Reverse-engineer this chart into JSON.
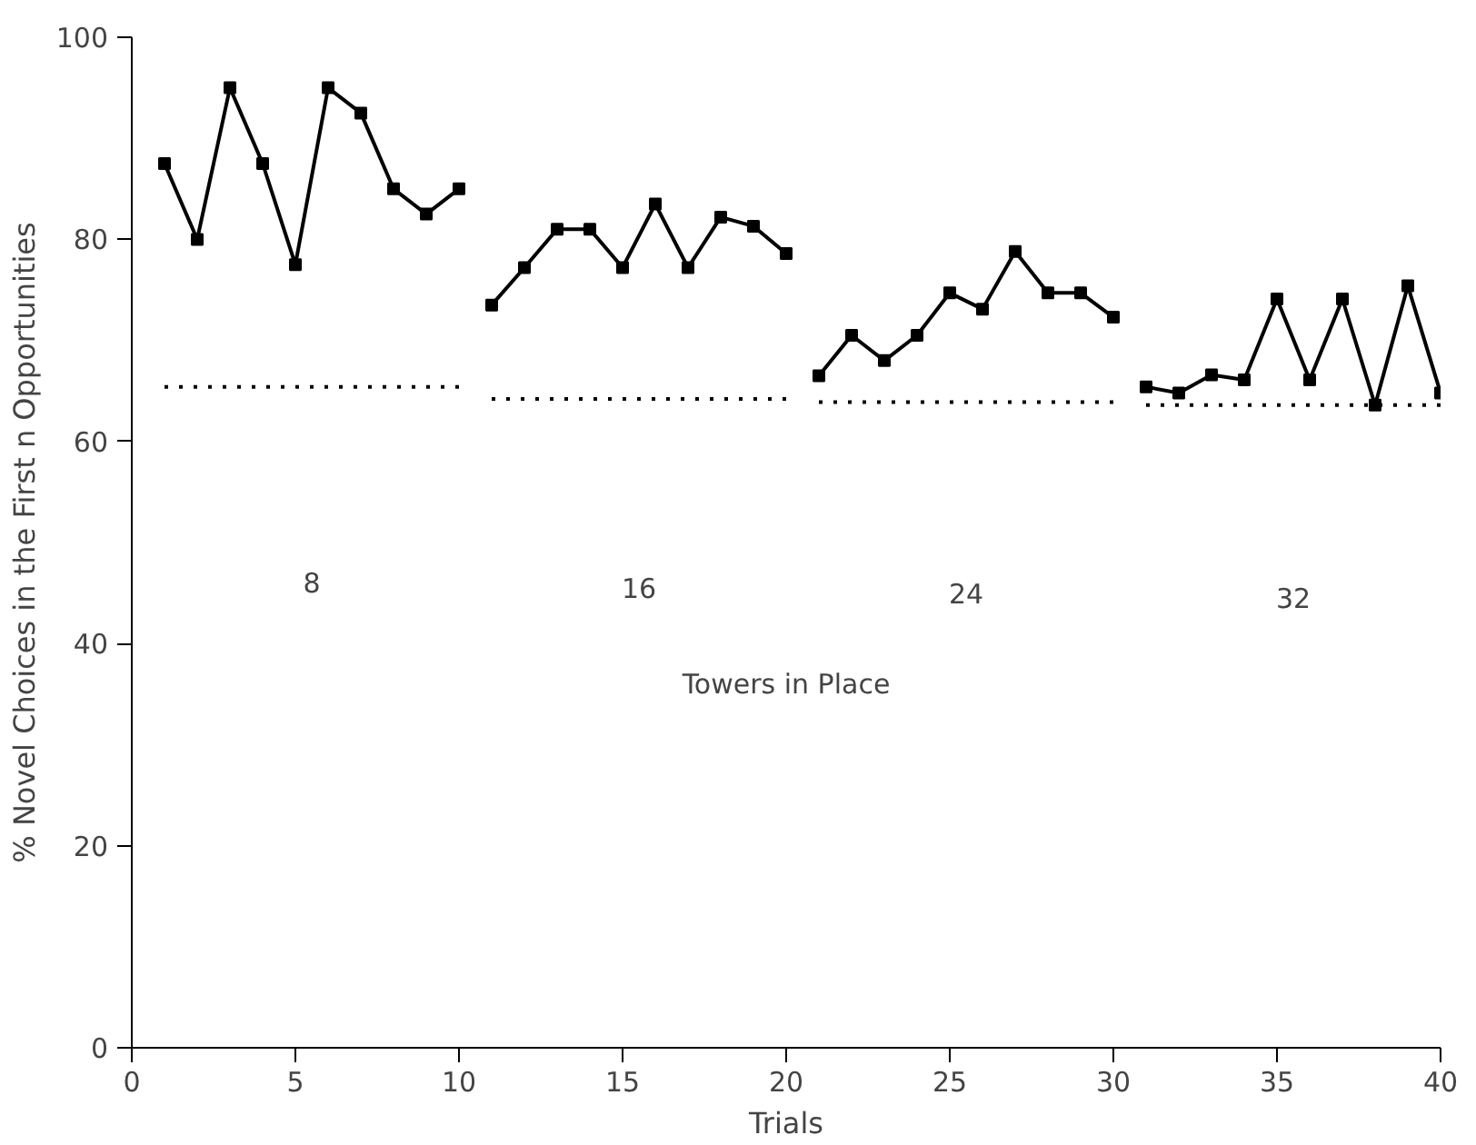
{
  "chart_data": {
    "type": "line",
    "xlabel": "Trials",
    "ylabel": "% Novel Choices in the First n Opportunities",
    "xlim": [
      0,
      40
    ],
    "xticks": [
      0,
      5,
      10,
      15,
      20,
      25,
      30,
      35,
      40
    ],
    "ylim": [
      0,
      100
    ],
    "yticks": [
      0,
      20,
      40,
      60,
      80,
      100
    ],
    "grid": false,
    "series": [
      {
        "color": "#000000",
        "marker": "square",
        "line_style": "solid",
        "x": [
          1,
          2,
          3,
          4,
          5,
          6,
          7,
          8,
          9,
          10
        ],
        "values": [
          87.5,
          80,
          95,
          87.5,
          77.5,
          95,
          92.5,
          85,
          82.5,
          85
        ]
      },
      {
        "color": "#000000",
        "marker": "square",
        "line_style": "solid",
        "x": [
          11,
          12,
          13,
          14,
          15,
          16,
          17,
          18,
          19,
          20
        ],
        "values": [
          73.5,
          77.2,
          81,
          81,
          77.2,
          83.5,
          77.2,
          82.2,
          81.3,
          78.6
        ]
      },
      {
        "color": "#000000",
        "marker": "square",
        "line_style": "solid",
        "x": [
          21,
          22,
          23,
          24,
          25,
          26,
          27,
          28,
          29,
          30
        ],
        "values": [
          66.5,
          70.5,
          68,
          70.5,
          74.7,
          73.1,
          78.8,
          74.7,
          74.7,
          72.3
        ]
      },
      {
        "color": "#000000",
        "marker": "square",
        "line_style": "solid",
        "x": [
          31,
          32,
          33,
          34,
          35,
          36,
          37,
          38,
          39,
          40
        ],
        "values": [
          65.4,
          64.8,
          66.6,
          66.1,
          74.1,
          66.1,
          74.1,
          63.6,
          75.4,
          64.8
        ]
      },
      {
        "color": "#000000",
        "marker": "none",
        "line_style": "dotted",
        "x": [
          1,
          10
        ],
        "values": [
          65.4,
          65.4
        ]
      },
      {
        "color": "#000000",
        "marker": "none",
        "line_style": "dotted",
        "x": [
          11,
          20
        ],
        "values": [
          64.2,
          64.2
        ]
      },
      {
        "color": "#000000",
        "marker": "none",
        "line_style": "dotted",
        "x": [
          21,
          30
        ],
        "values": [
          63.9,
          63.9
        ]
      },
      {
        "color": "#000000",
        "marker": "none",
        "line_style": "dotted",
        "x": [
          31,
          40
        ],
        "values": [
          63.6,
          63.6
        ]
      }
    ],
    "annotations": [
      "8",
      "16",
      "24",
      "32",
      "Towers in Place"
    ]
  }
}
